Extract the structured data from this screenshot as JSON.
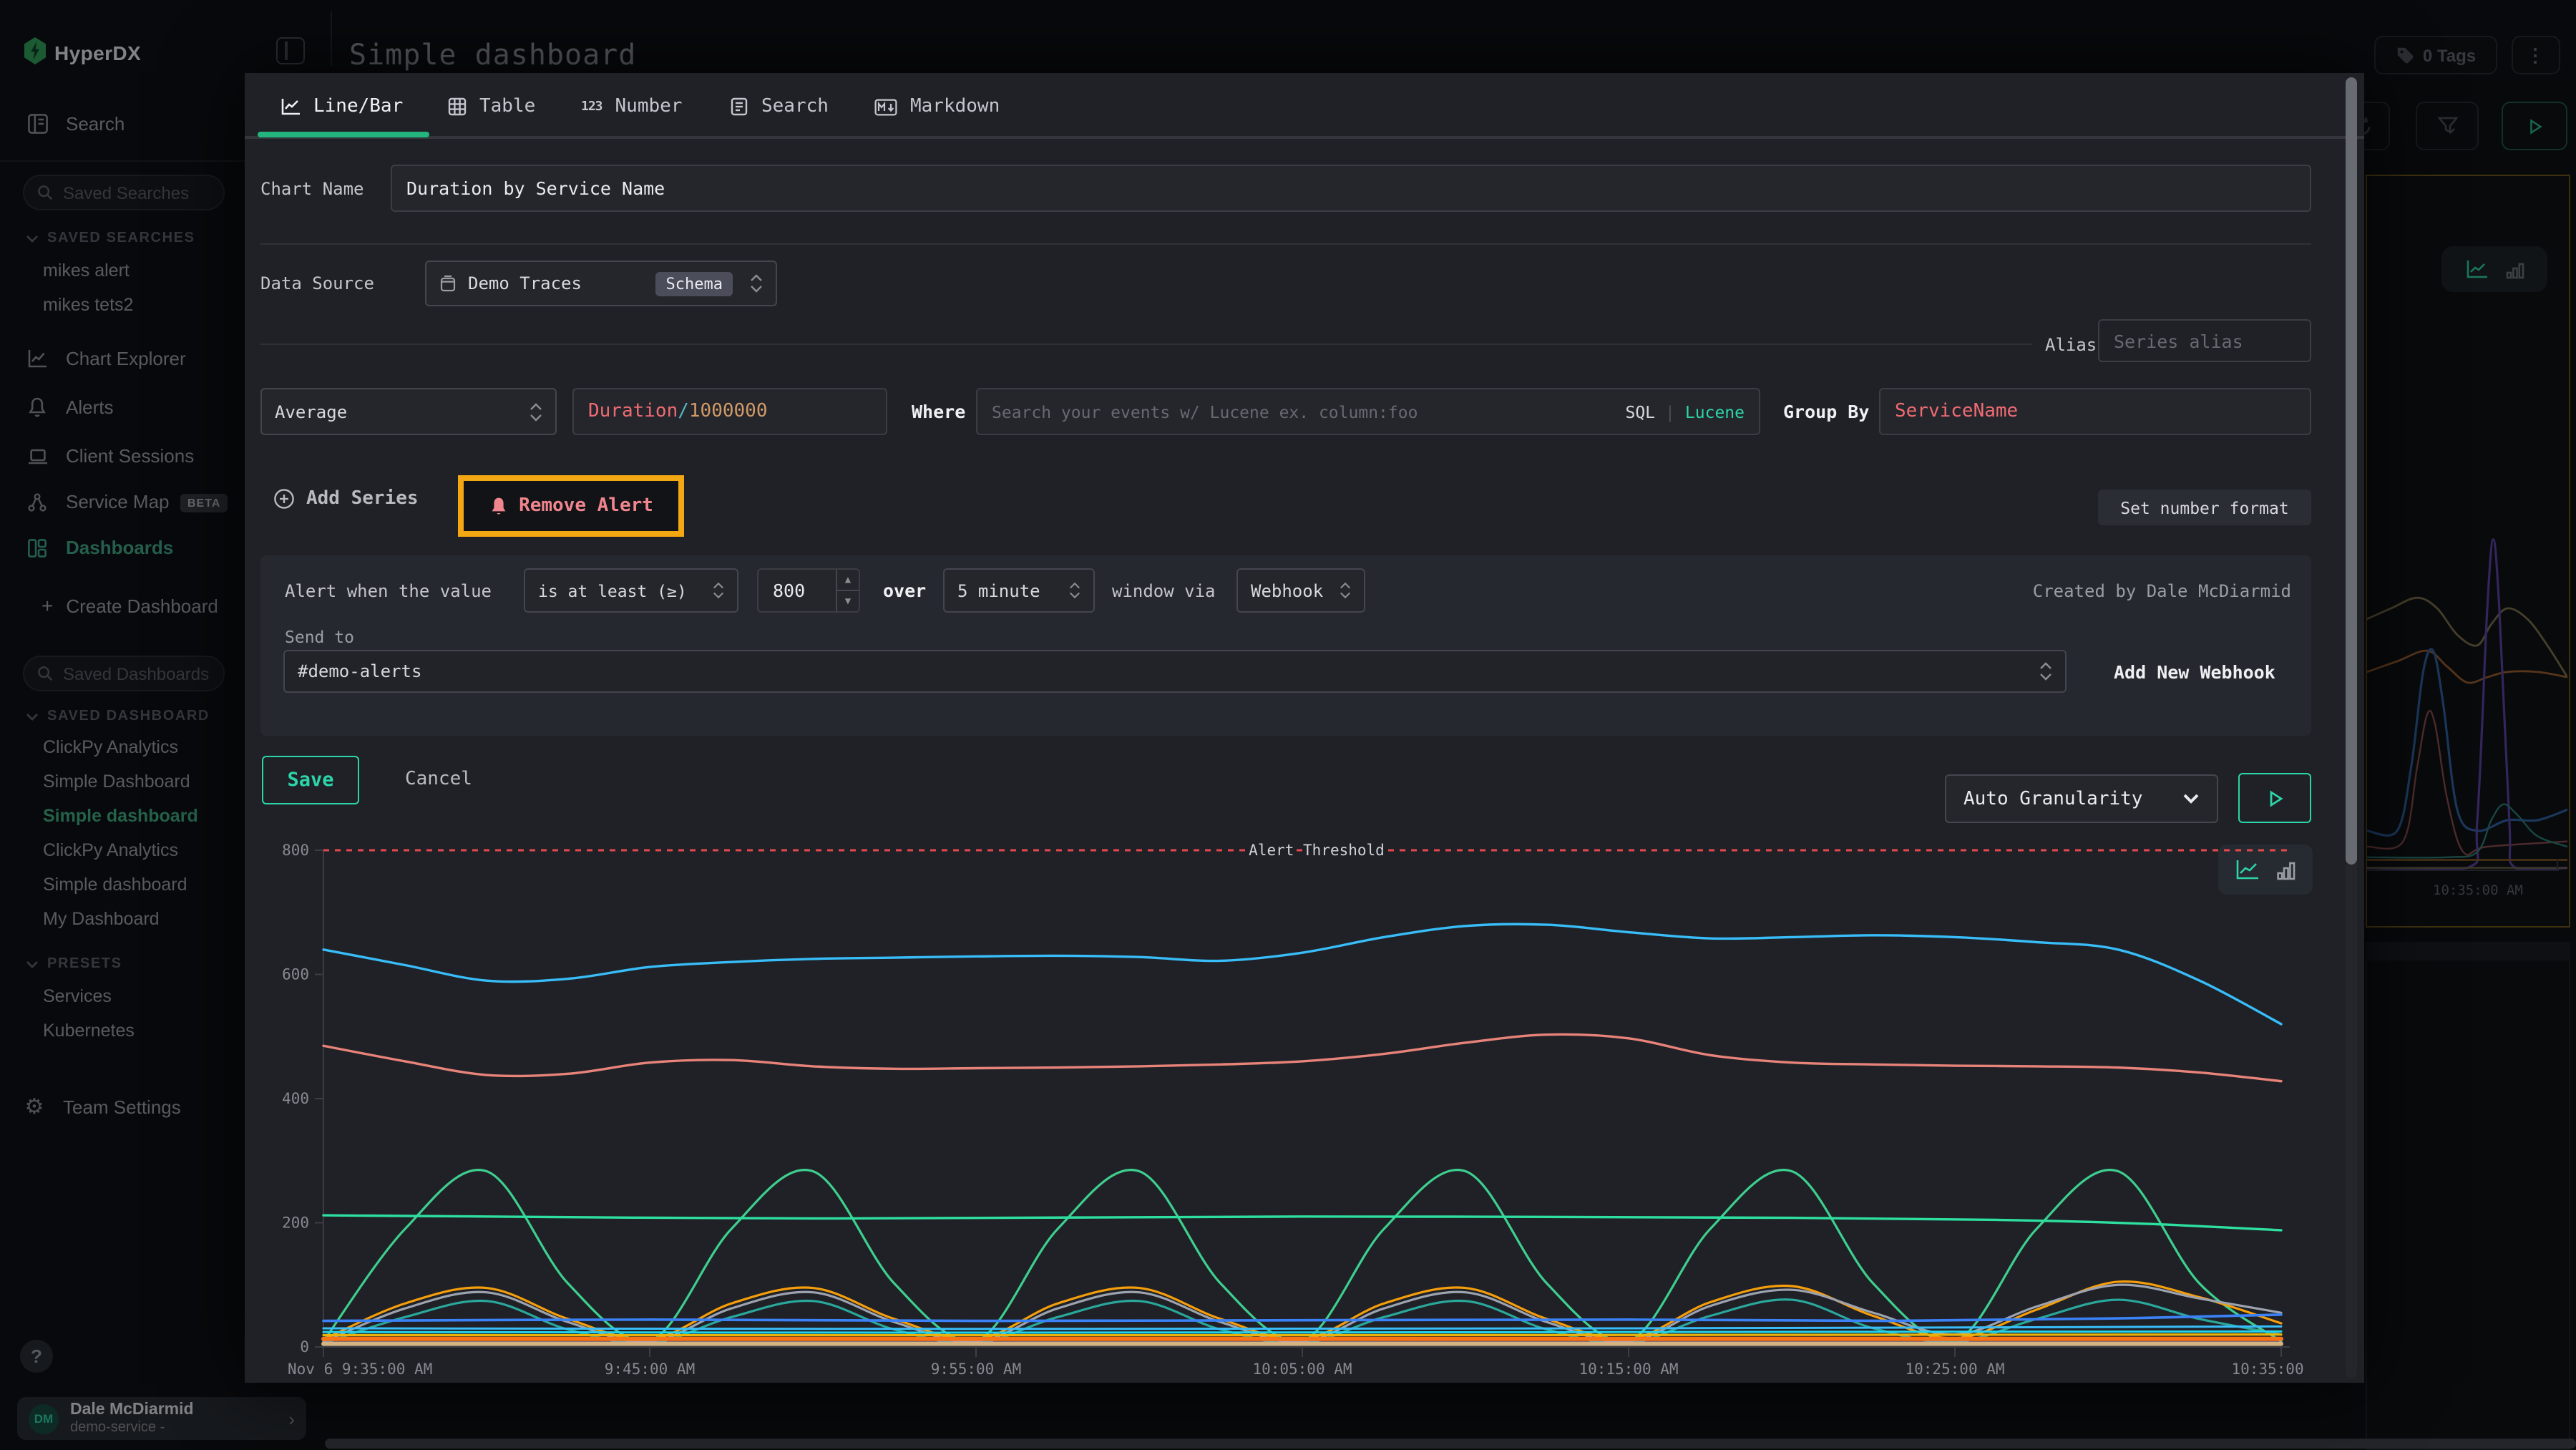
{
  "header": {
    "brand": "HyperDX",
    "title": "Simple dashboard"
  },
  "topbar_right": {
    "tags": "0 Tags"
  },
  "sidebar": {
    "search_label": "Search",
    "saved_searches_placeholder": "Saved Searches",
    "saved_searches_header": "SAVED SEARCHES",
    "saved_searches": [
      "mikes alert",
      "mikes tets2"
    ],
    "nav": [
      {
        "label": "Chart Explorer"
      },
      {
        "label": "Alerts"
      },
      {
        "label": "Client Sessions"
      },
      {
        "label": "Service Map",
        "badge": "BETA"
      },
      {
        "label": "Dashboards",
        "active": true
      }
    ],
    "create_dashboard": "Create Dashboard",
    "saved_dashboards_placeholder": "Saved Dashboards",
    "saved_dashboards_header": "SAVED DASHBOARD",
    "saved_dashboards": [
      {
        "label": "ClickPy Analytics"
      },
      {
        "label": "Simple Dashboard"
      },
      {
        "label": "Simple dashboard",
        "active": true
      },
      {
        "label": "ClickPy Analytics"
      },
      {
        "label": "Simple dashboard"
      },
      {
        "label": "My Dashboard"
      }
    ],
    "presets_header": "PRESETS",
    "presets": [
      "Services",
      "Kubernetes"
    ],
    "team_settings": "Team Settings",
    "help": "?",
    "user": {
      "initials": "DM",
      "name": "Dale McDiarmid",
      "subtitle": "demo-service -"
    }
  },
  "modal": {
    "tabs": [
      {
        "label": "Line/Bar",
        "active": true
      },
      {
        "label": "Table"
      },
      {
        "label": "Number",
        "icon_text": "123"
      },
      {
        "label": "Search"
      },
      {
        "label": "Markdown"
      }
    ],
    "chart_name_label": "Chart Name",
    "chart_name_value": "Duration by Service Name",
    "data_source_label": "Data Source",
    "data_source_value": "Demo Traces",
    "data_source_badge": "Schema",
    "alias_label": "Alias",
    "alias_placeholder": "Series alias",
    "series": {
      "aggregation": "Average",
      "field_parts": [
        "Duration",
        "/",
        "1000000"
      ],
      "where_label": "Where",
      "search_placeholder": "Search your events w/ Lucene ex. column:foo",
      "sql_label": "SQL",
      "lucene_label": "Lucene",
      "group_by_label": "Group By",
      "group_by_value": "ServiceName"
    },
    "add_series": "Add Series",
    "remove_alert": "Remove Alert",
    "set_number_format": "Set number format",
    "alert": {
      "prefix": "Alert when the value",
      "comparator": "is at least (≥)",
      "threshold": "800",
      "over": "over",
      "window": "5 minute",
      "via": "window via",
      "channel_type": "Webhook",
      "created_by": "Created by Dale McDiarmid",
      "send_to_label": "Send to",
      "send_to_value": "#demo-alerts",
      "add_webhook": "Add New Webhook"
    },
    "save": "Save",
    "cancel": "Cancel",
    "granularity": "Auto Granularity"
  },
  "chart_data": {
    "type": "line",
    "title": "Duration by Service Name",
    "x_unit": "minutes after Nov 6 9:35:00 AM",
    "x_tick_labels": [
      "Nov 6 9:35:00 AM",
      "9:45:00 AM",
      "9:55:00 AM",
      "10:05:00 AM",
      "10:15:00 AM",
      "10:25:00 AM",
      "10:35:00 AM"
    ],
    "y_ticks": [
      0,
      200,
      400,
      600,
      800
    ],
    "ylim": [
      0,
      830
    ],
    "grid": false,
    "legend": false,
    "threshold": {
      "value": 800,
      "label": "Alert Threshold",
      "color": "#e5484d"
    },
    "series": [
      {
        "name": "sky-blue",
        "color": "#38bdf8",
        "width": 1.7,
        "x": [
          0,
          2.5,
          5,
          7.5,
          10,
          12.5,
          15,
          17.5,
          20,
          22.5,
          25,
          27.5,
          30,
          32.5,
          35,
          37.5,
          40,
          42.5,
          45,
          47.5,
          50,
          52.5,
          55,
          57.5,
          60
        ],
        "values": [
          640,
          615,
          590,
          593,
          612,
          620,
          625,
          627,
          629,
          630,
          628,
          622,
          635,
          660,
          678,
          680,
          668,
          658,
          660,
          663,
          660,
          652,
          640,
          590,
          520
        ]
      },
      {
        "name": "salmon",
        "color": "#e8837a",
        "width": 1.7,
        "x": [
          0,
          2.5,
          5,
          7.5,
          10,
          12.5,
          15,
          17.5,
          20,
          22.5,
          25,
          27.5,
          30,
          32.5,
          35,
          37.5,
          40,
          42.5,
          45,
          47.5,
          50,
          52.5,
          55,
          57.5,
          60
        ],
        "values": [
          485,
          460,
          438,
          440,
          458,
          462,
          452,
          448,
          449,
          450,
          452,
          455,
          460,
          472,
          490,
          503,
          497,
          470,
          458,
          455,
          453,
          452,
          450,
          442,
          428
        ]
      },
      {
        "name": "green-wave",
        "color": "#3ecf8e",
        "width": 1.6,
        "x": [
          0,
          2.5,
          5,
          7.5,
          10,
          12.5,
          15,
          17.5,
          20,
          22.5,
          25,
          27.5,
          30,
          32.5,
          35,
          37.5,
          40,
          42.5,
          45,
          47.5,
          50,
          52.5,
          55,
          57.5,
          60
        ],
        "values": [
          9,
          190,
          283,
          102,
          9,
          190,
          283,
          102,
          9,
          190,
          283,
          102,
          9,
          190,
          283,
          102,
          9,
          190,
          283,
          102,
          9,
          190,
          283,
          102,
          9
        ]
      },
      {
        "name": "mint-flat",
        "color": "#2ee0a0",
        "width": 1.7,
        "x": [
          0,
          15,
          30,
          45,
          52,
          56,
          60
        ],
        "values": [
          212,
          207,
          210,
          208,
          204,
          198,
          188
        ]
      },
      {
        "name": "orange-wave",
        "color": "#f59e0b",
        "width": 1.6,
        "x": [
          0,
          2.5,
          5,
          7.5,
          10,
          12.5,
          15,
          17.5,
          20,
          22.5,
          25,
          27.5,
          30,
          32.5,
          35,
          37.5,
          40,
          42.5,
          45,
          47.5,
          50,
          52.5,
          55,
          57.5,
          60
        ],
        "values": [
          12,
          70,
          95,
          45,
          12,
          70,
          95,
          45,
          12,
          70,
          95,
          45,
          12,
          70,
          95,
          45,
          12,
          72,
          98,
          50,
          14,
          60,
          105,
          80,
          38
        ]
      },
      {
        "name": "gray-wave",
        "color": "#9ca3af",
        "width": 1.6,
        "x": [
          0,
          2.5,
          5,
          7.5,
          10,
          12.5,
          15,
          17.5,
          20,
          22.5,
          25,
          27.5,
          30,
          32.5,
          35,
          37.5,
          40,
          42.5,
          45,
          47.5,
          50,
          52.5,
          55,
          57.5,
          60
        ],
        "values": [
          8,
          62,
          88,
          40,
          8,
          62,
          88,
          40,
          8,
          62,
          88,
          40,
          8,
          62,
          88,
          40,
          8,
          66,
          92,
          55,
          20,
          65,
          100,
          78,
          55
        ]
      },
      {
        "name": "teal-wave",
        "color": "#2aa79b",
        "width": 1.6,
        "x": [
          0,
          2.5,
          5,
          7.5,
          10,
          12.5,
          15,
          17.5,
          20,
          22.5,
          25,
          27.5,
          30,
          32.5,
          35,
          37.5,
          40,
          42.5,
          45,
          47.5,
          50,
          52.5,
          55,
          57.5,
          60
        ],
        "values": [
          6,
          48,
          74,
          28,
          6,
          48,
          74,
          28,
          6,
          48,
          74,
          28,
          6,
          48,
          74,
          28,
          6,
          50,
          76,
          30,
          8,
          45,
          76,
          45,
          20
        ]
      },
      {
        "name": "blue-flat",
        "color": "#3b82f6",
        "width": 1.8,
        "x": [
          0,
          10,
          20,
          30,
          40,
          48,
          55,
          60
        ],
        "values": [
          42,
          44,
          42,
          43,
          44,
          42,
          46,
          52
        ]
      },
      {
        "name": "lightblue-flat",
        "color": "#38bdf8",
        "width": 1.5,
        "x": [
          0,
          20,
          40,
          60
        ],
        "values": [
          30,
          29,
          30,
          33
        ]
      },
      {
        "name": "cyan-flat",
        "color": "#22d3ee",
        "width": 1.5,
        "x": [
          0,
          20,
          40,
          60
        ],
        "values": [
          24,
          23,
          24,
          25
        ]
      },
      {
        "name": "amber-flat",
        "color": "#eab308",
        "width": 1.6,
        "x": [
          0,
          30,
          60
        ],
        "values": [
          19,
          19,
          20
        ]
      },
      {
        "name": "orange-thick",
        "color": "#f97316",
        "width": 3,
        "x": [
          0,
          30,
          60
        ],
        "values": [
          13,
          13,
          13
        ]
      },
      {
        "name": "purple-flat",
        "color": "#a78bfa",
        "width": 1.5,
        "x": [
          0,
          30,
          60
        ],
        "values": [
          7,
          7,
          7
        ]
      },
      {
        "name": "tan-thick",
        "color": "#d4b483",
        "width": 3,
        "x": [
          0,
          30,
          60
        ],
        "values": [
          5,
          5,
          5
        ]
      }
    ]
  },
  "background_chart": {
    "x_label": "10:35:00 AM",
    "series": [
      {
        "color": "#7d7048",
        "width": 1.4,
        "points": [
          [
            0,
            52
          ],
          [
            12,
            50
          ],
          [
            25,
            48
          ],
          [
            35,
            50
          ],
          [
            45,
            55
          ],
          [
            55,
            57
          ],
          [
            62,
            53
          ],
          [
            70,
            50
          ],
          [
            80,
            52
          ],
          [
            90,
            57
          ],
          [
            100,
            63
          ]
        ]
      },
      {
        "color": "#9a5b2a",
        "width": 1.4,
        "points": [
          [
            0,
            62
          ],
          [
            15,
            60
          ],
          [
            30,
            58
          ],
          [
            40,
            61
          ],
          [
            50,
            64
          ],
          [
            60,
            63
          ],
          [
            70,
            62
          ],
          [
            85,
            62
          ],
          [
            100,
            63
          ]
        ]
      },
      {
        "color": "#2f5f9e",
        "width": 1.6,
        "points": [
          [
            0,
            92
          ],
          [
            15,
            92
          ],
          [
            22,
            80
          ],
          [
            28,
            62
          ],
          [
            33,
            58
          ],
          [
            38,
            68
          ],
          [
            45,
            88
          ],
          [
            55,
            92
          ],
          [
            70,
            90
          ],
          [
            85,
            90
          ],
          [
            100,
            88
          ]
        ]
      },
      {
        "color": "#8a4a4a",
        "width": 1.2,
        "points": [
          [
            0,
            95
          ],
          [
            18,
            94
          ],
          [
            25,
            80
          ],
          [
            30,
            70
          ],
          [
            34,
            72
          ],
          [
            40,
            86
          ],
          [
            48,
            96
          ],
          [
            60,
            95
          ],
          [
            100,
            94
          ]
        ]
      },
      {
        "color": "#5b3fa0",
        "width": 1.6,
        "points": [
          [
            0,
            99
          ],
          [
            50,
            99
          ],
          [
            55,
            90
          ],
          [
            60,
            50
          ],
          [
            63,
            37
          ],
          [
            66,
            50
          ],
          [
            71,
            90
          ],
          [
            74,
            99
          ],
          [
            100,
            99
          ]
        ]
      },
      {
        "color": "#2a7a72",
        "width": 1.2,
        "points": [
          [
            0,
            97
          ],
          [
            40,
            97
          ],
          [
            55,
            96
          ],
          [
            62,
            90
          ],
          [
            68,
            87
          ],
          [
            75,
            89
          ],
          [
            85,
            93
          ],
          [
            100,
            95
          ]
        ]
      },
      {
        "color": "#8a5a20",
        "width": 1.2,
        "points": [
          [
            0,
            97.5
          ],
          [
            100,
            97.5
          ]
        ]
      },
      {
        "color": "#6e6244",
        "width": 1.2,
        "points": [
          [
            0,
            99
          ],
          [
            100,
            99
          ]
        ]
      }
    ]
  },
  "colors": {
    "accent_green": "#2dd4a7",
    "highlight_orange": "#f3a712",
    "alert_pink": "#f0868d",
    "code_red": "#ef6b73",
    "code_cyan": "#56b6c2",
    "code_orange": "#d19a66",
    "threshold_red": "#e5484d"
  }
}
